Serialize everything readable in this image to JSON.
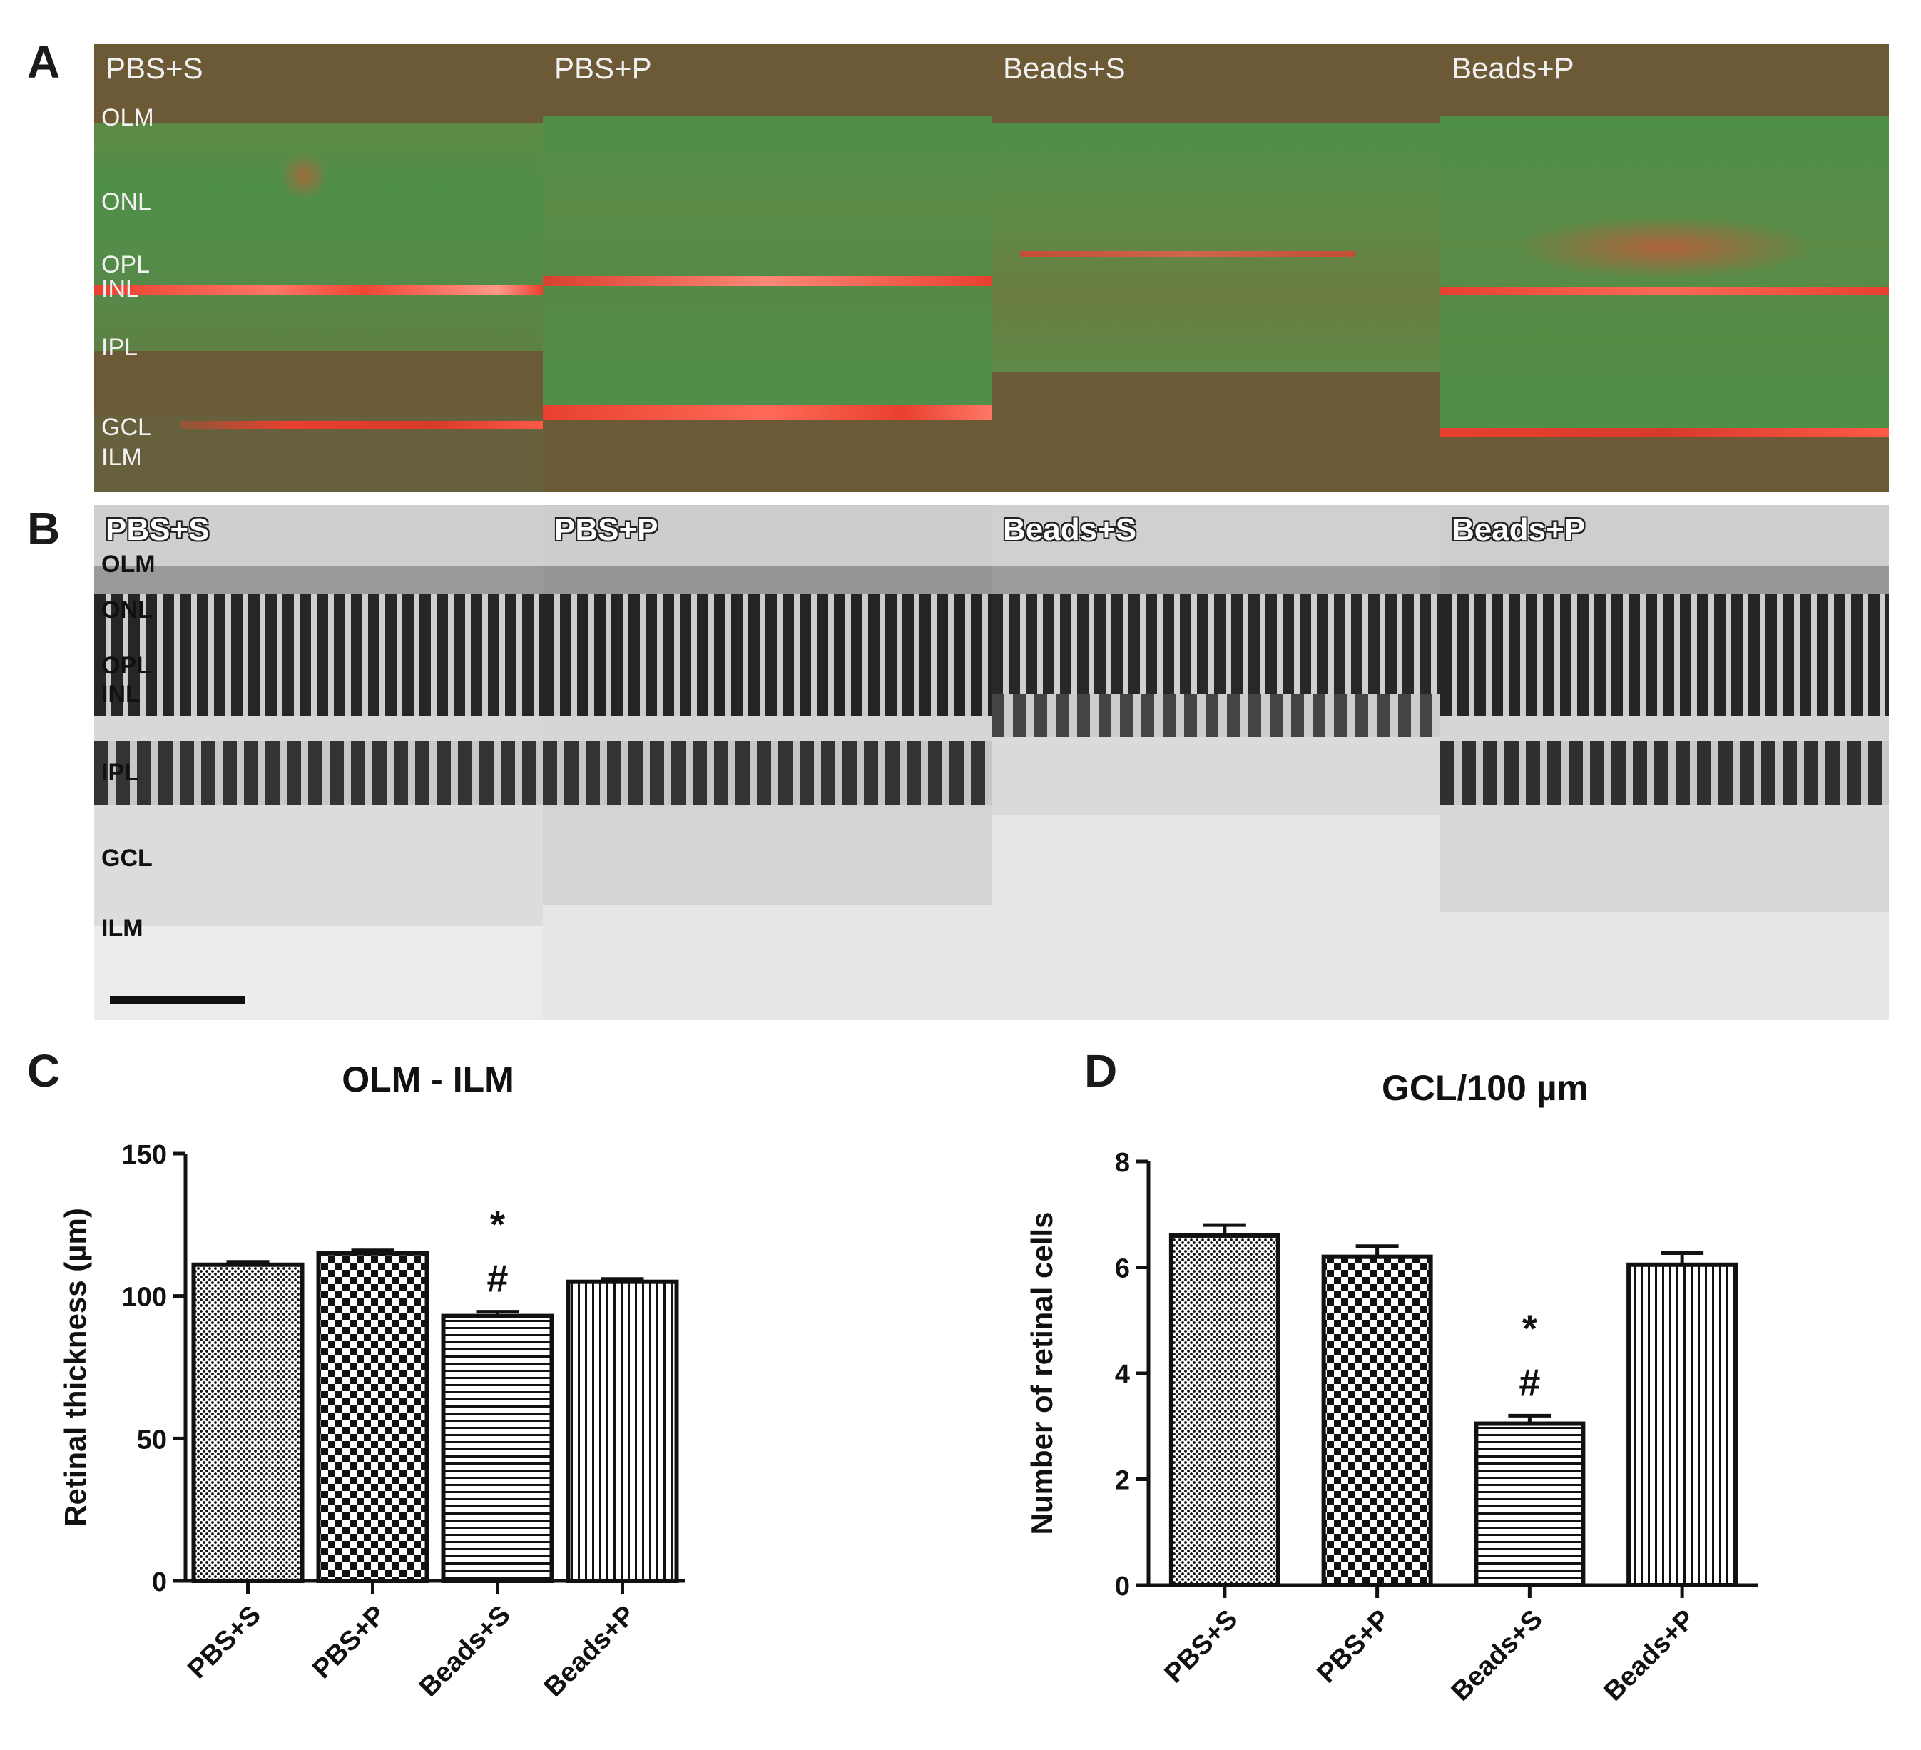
{
  "panels": {
    "a": "A",
    "b": "B",
    "c": "C",
    "d": "D"
  },
  "groups": [
    "PBS+S",
    "PBS+P",
    "Beads+S",
    "Beads+P"
  ],
  "layers": [
    "OLM",
    "ONL",
    "OPL",
    "INL",
    "IPL",
    "GCL",
    "ILM"
  ],
  "colors": {
    "fluor_green": "#4f8f4a",
    "fluor_brown": "#6f5a36",
    "fluor_red": "#e84030",
    "histo_dark": "#262626",
    "histo_light": "#e6e6e6"
  },
  "chart_data": [
    {
      "type": "bar",
      "panel": "C",
      "title": "OLM - ILM",
      "ylabel": "Retinal thickness (µm)",
      "xlabel": "",
      "categories": [
        "PBS+S",
        "PBS+P",
        "Beads+S",
        "Beads+P"
      ],
      "values": [
        111,
        115,
        93,
        105
      ],
      "errors": [
        1,
        1,
        1.5,
        1
      ],
      "ylim": [
        0,
        150
      ],
      "yticks": [
        0,
        50,
        100,
        150
      ],
      "annotations": [
        {
          "category": "Beads+S",
          "symbols": [
            "*",
            "#"
          ]
        }
      ],
      "patterns": [
        "dots",
        "checker",
        "horizontal-lines",
        "vertical-lines"
      ]
    },
    {
      "type": "bar",
      "panel": "D",
      "title": "GCL/100 µm",
      "ylabel": "Number of retinal cells",
      "xlabel": "",
      "categories": [
        "PBS+S",
        "PBS+P",
        "Beads+S",
        "Beads+P"
      ],
      "values": [
        6.6,
        6.2,
        3.05,
        6.05
      ],
      "errors": [
        0.2,
        0.2,
        0.15,
        0.22
      ],
      "ylim": [
        0,
        8
      ],
      "yticks": [
        0,
        2,
        4,
        6,
        8
      ],
      "annotations": [
        {
          "category": "Beads+S",
          "symbols": [
            "*",
            "#"
          ]
        }
      ],
      "patterns": [
        "dots",
        "checker",
        "horizontal-lines",
        "vertical-lines"
      ]
    }
  ]
}
